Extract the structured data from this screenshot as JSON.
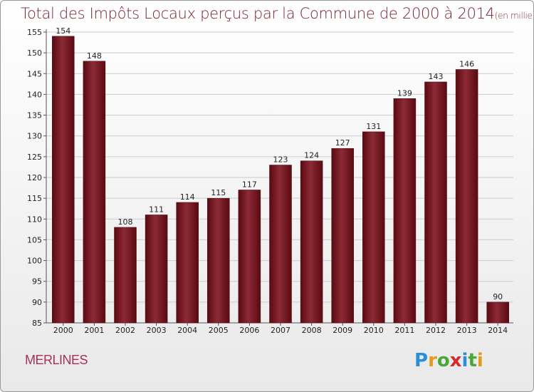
{
  "title_main": "Total des Impôts Locaux perçus par la Commune de 2000 à 2014",
  "title_unit": "(en milliers d'€)",
  "commune": "MERLINES",
  "logo": {
    "letters": [
      "P",
      "r",
      "o",
      "x",
      "i",
      "t",
      "i"
    ],
    "colors": [
      "#2a8fd6",
      "#e39a1f",
      "#4aa83a",
      "#d62b2b",
      "#2a8fd6",
      "#4aa83a",
      "#e39a1f"
    ]
  },
  "colors": {
    "bar_dark": "#5a0a12",
    "bar_light": "#8c2a35",
    "title": "#7a1f2e"
  },
  "chart_data": {
    "type": "bar",
    "categories": [
      "2000",
      "2001",
      "2002",
      "2003",
      "2004",
      "2005",
      "2006",
      "2007",
      "2008",
      "2009",
      "2010",
      "2011",
      "2012",
      "2013",
      "2014"
    ],
    "values": [
      154,
      148,
      108,
      111,
      114,
      115,
      117,
      123,
      124,
      127,
      131,
      139,
      143,
      146,
      90
    ],
    "ylim": [
      85,
      155
    ],
    "yticks": [
      85,
      90,
      95,
      100,
      105,
      110,
      115,
      120,
      125,
      130,
      135,
      140,
      145,
      150,
      155
    ],
    "grid": true
  }
}
